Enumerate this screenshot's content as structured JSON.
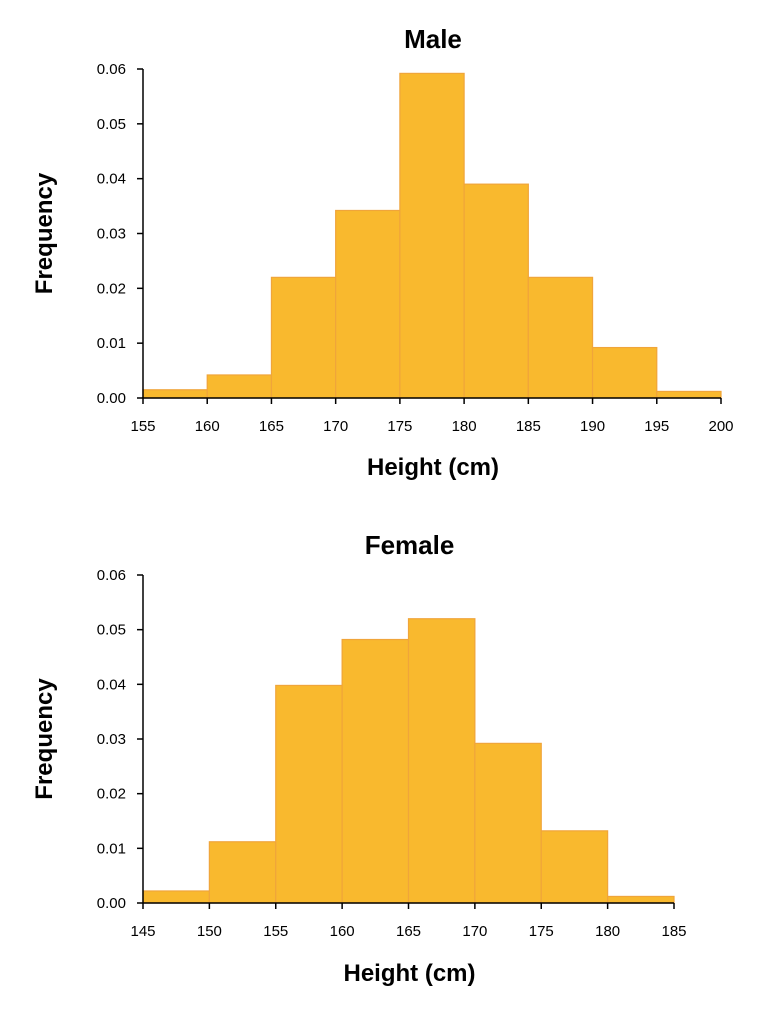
{
  "chart_data": [
    {
      "type": "bar",
      "title": "Male",
      "xlabel": "Height (cm)",
      "ylabel": "Frequency",
      "bin_edges": [
        155,
        160,
        165,
        170,
        175,
        180,
        185,
        190,
        195,
        200
      ],
      "values": [
        0.0015,
        0.0042,
        0.022,
        0.0342,
        0.0592,
        0.039,
        0.022,
        0.0092,
        0.0012
      ],
      "xticks": [
        "155",
        "160",
        "165",
        "170",
        "175",
        "180",
        "185",
        "190",
        "195",
        "200"
      ],
      "yticks": [
        "0.00",
        "0.01",
        "0.02",
        "0.03",
        "0.04",
        "0.05",
        "0.06"
      ],
      "xlim": [
        155,
        200
      ],
      "ylim": [
        0,
        0.06
      ],
      "grid": false,
      "bar_color": "#f9b92e",
      "edge_color": "#f0a53a"
    },
    {
      "type": "bar",
      "title": "Female",
      "xlabel": "Height (cm)",
      "ylabel": "Frequency",
      "bin_edges": [
        145,
        150,
        155,
        160,
        165,
        170,
        175,
        180,
        185
      ],
      "values": [
        0.0022,
        0.0112,
        0.0398,
        0.0482,
        0.052,
        0.0292,
        0.0132,
        0.0012
      ],
      "xticks": [
        "145",
        "150",
        "155",
        "160",
        "165",
        "170",
        "175",
        "180",
        "185"
      ],
      "yticks": [
        "0.00",
        "0.01",
        "0.02",
        "0.03",
        "0.04",
        "0.05",
        "0.06"
      ],
      "xlim": [
        145,
        185
      ],
      "ylim": [
        0,
        0.06
      ],
      "grid": false,
      "bar_color": "#f9b92e",
      "edge_color": "#f0a53a"
    }
  ]
}
